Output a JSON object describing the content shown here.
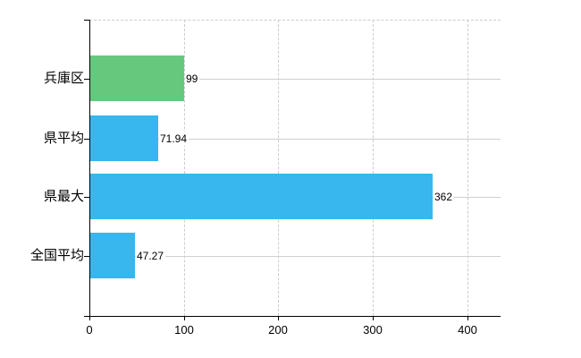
{
  "chart_data": {
    "type": "bar",
    "orientation": "horizontal",
    "title": "",
    "xlabel": "",
    "ylabel": "",
    "categories": [
      "兵庫区",
      "県平均",
      "県最大",
      "全国平均"
    ],
    "values": [
      99,
      71.94,
      362,
      47.27
    ],
    "value_labels": [
      "99",
      "71.94",
      "362",
      "47.27"
    ],
    "bar_colors": [
      "#66c87d",
      "#38b6ee",
      "#38b6ee",
      "#38b6ee"
    ],
    "x_ticks": [
      0,
      100,
      200,
      300,
      400
    ],
    "x_tick_labels": [
      "0",
      "100",
      "200",
      "300",
      "400"
    ],
    "xlim": [
      0,
      435
    ],
    "grid": "dashed vertical gridlines at each x tick; light horizontal line at each category center; dashed top border",
    "legend": "none"
  },
  "colors": {
    "background": "#ffffff",
    "axis": "#000000",
    "gridline": "#cccccc",
    "row_line": "#d0d0d0",
    "text": "#000000"
  }
}
